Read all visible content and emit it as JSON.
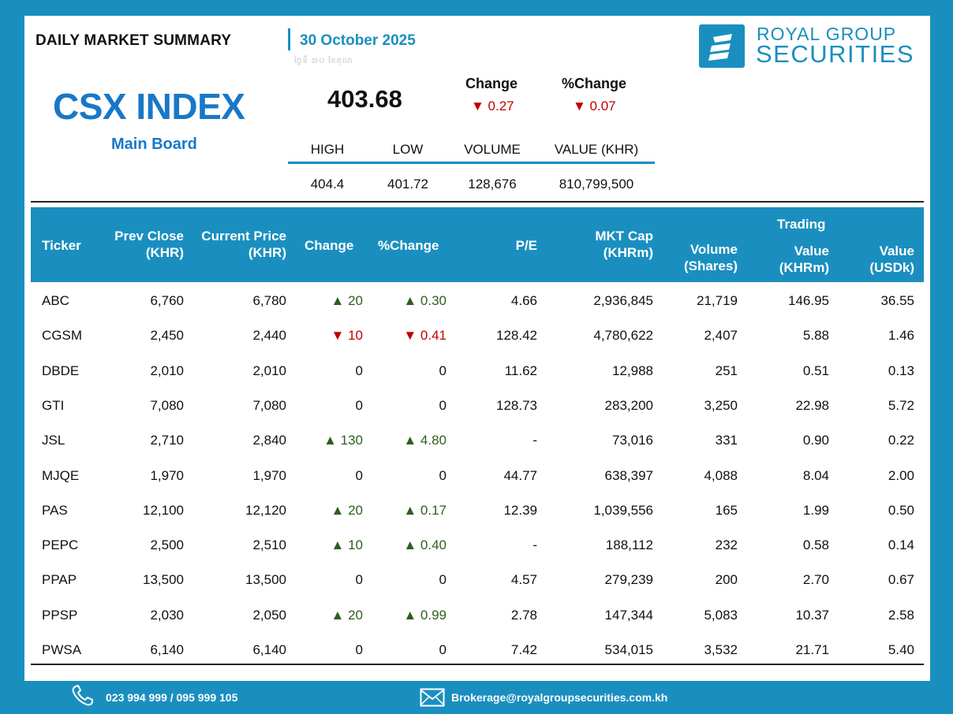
{
  "header": {
    "title": "DAILY MARKET SUMMARY",
    "date": "30 October 2025",
    "subtext": "ថ្ងៃទី ៣០ ខែតុលា"
  },
  "brand": {
    "line1": "ROYAL GROUP",
    "line2": "SECURITIES",
    "icon": "royal-group-logo-icon",
    "color": "#1a8fbf"
  },
  "index": {
    "name": "CSX INDEX",
    "board": "Main Board",
    "value": "403.68",
    "change_label": "Change",
    "pchange_label": "%Change",
    "change": "▼ 0.27",
    "pchange": "▼ 0.07",
    "stats": [
      {
        "label": "HIGH",
        "value": "404.4"
      },
      {
        "label": "LOW",
        "value": "401.72"
      },
      {
        "label": "VOLUME",
        "value": "128,676"
      },
      {
        "label": "VALUE (KHR)",
        "value": "810,799,500"
      }
    ]
  },
  "table": {
    "headers": {
      "ticker": "Ticker",
      "prev_close_1": "Prev Close",
      "prev_close_2": "(KHR)",
      "current_price_1": "Current Price",
      "current_price_2": "(KHR)",
      "change": "Change",
      "pchange": "%Change",
      "pe": "P/E",
      "mktcap_1": "MKT Cap",
      "mktcap_2": "(KHRm)",
      "volume_1": "Volume",
      "volume_2": "(Shares)",
      "trading": "Trading",
      "value_khr_1": "Value",
      "value_khr_2": "(KHRm)",
      "value_usd_1": "Value",
      "value_usd_2": "(USDk)"
    },
    "rows": [
      {
        "ticker": "ABC",
        "prev": "6,760",
        "cur": "6,780",
        "chg": "▲ 20",
        "pchg": "▲ 0.30",
        "dir": "up",
        "pe": "4.66",
        "mcap": "2,936,845",
        "vol": "21,719",
        "vkhr": "146.95",
        "vusd": "36.55"
      },
      {
        "ticker": "CGSM",
        "prev": "2,450",
        "cur": "2,440",
        "chg": "▼ 10",
        "pchg": "▼ 0.41",
        "dir": "dn",
        "pe": "128.42",
        "mcap": "4,780,622",
        "vol": "2,407",
        "vkhr": "5.88",
        "vusd": "1.46"
      },
      {
        "ticker": "DBDE",
        "prev": "2,010",
        "cur": "2,010",
        "chg": "0",
        "pchg": "0",
        "dir": "flat",
        "pe": "11.62",
        "mcap": "12,988",
        "vol": "251",
        "vkhr": "0.51",
        "vusd": "0.13"
      },
      {
        "ticker": "GTI",
        "prev": "7,080",
        "cur": "7,080",
        "chg": "0",
        "pchg": "0",
        "dir": "flat",
        "pe": "128.73",
        "mcap": "283,200",
        "vol": "3,250",
        "vkhr": "22.98",
        "vusd": "5.72"
      },
      {
        "ticker": "JSL",
        "prev": "2,710",
        "cur": "2,840",
        "chg": "▲ 130",
        "pchg": "▲ 4.80",
        "dir": "up",
        "pe": "-",
        "mcap": "73,016",
        "vol": "331",
        "vkhr": "0.90",
        "vusd": "0.22"
      },
      {
        "ticker": "MJQE",
        "prev": "1,970",
        "cur": "1,970",
        "chg": "0",
        "pchg": "0",
        "dir": "flat",
        "pe": "44.77",
        "mcap": "638,397",
        "vol": "4,088",
        "vkhr": "8.04",
        "vusd": "2.00"
      },
      {
        "ticker": "PAS",
        "prev": "12,100",
        "cur": "12,120",
        "chg": "▲ 20",
        "pchg": "▲ 0.17",
        "dir": "up",
        "pe": "12.39",
        "mcap": "1,039,556",
        "vol": "165",
        "vkhr": "1.99",
        "vusd": "0.50"
      },
      {
        "ticker": "PEPC",
        "prev": "2,500",
        "cur": "2,510",
        "chg": "▲ 10",
        "pchg": "▲ 0.40",
        "dir": "up",
        "pe": "-",
        "mcap": "188,112",
        "vol": "232",
        "vkhr": "0.58",
        "vusd": "0.14"
      },
      {
        "ticker": "PPAP",
        "prev": "13,500",
        "cur": "13,500",
        "chg": "0",
        "pchg": "0",
        "dir": "flat",
        "pe": "4.57",
        "mcap": "279,239",
        "vol": "200",
        "vkhr": "2.70",
        "vusd": "0.67"
      },
      {
        "ticker": "PPSP",
        "prev": "2,030",
        "cur": "2,050",
        "chg": "▲ 20",
        "pchg": "▲ 0.99",
        "dir": "up",
        "pe": "2.78",
        "mcap": "147,344",
        "vol": "5,083",
        "vkhr": "10.37",
        "vusd": "2.58"
      },
      {
        "ticker": "PWSA",
        "prev": "6,140",
        "cur": "6,140",
        "chg": "0",
        "pchg": "0",
        "dir": "flat",
        "pe": "7.42",
        "mcap": "534,015",
        "vol": "3,532",
        "vkhr": "21.71",
        "vusd": "5.40"
      }
    ]
  },
  "footer": {
    "phone": "023 994 999 / 095 999 105",
    "email": "Brokerage@royalgroupsecurities.com.kh",
    "phone_icon": "phone-icon",
    "mail_icon": "mail-icon"
  },
  "colors": {
    "accent": "#1a8fbf",
    "index_blue": "#1878c8",
    "up": "#2e5e1e",
    "down": "#c00000"
  }
}
